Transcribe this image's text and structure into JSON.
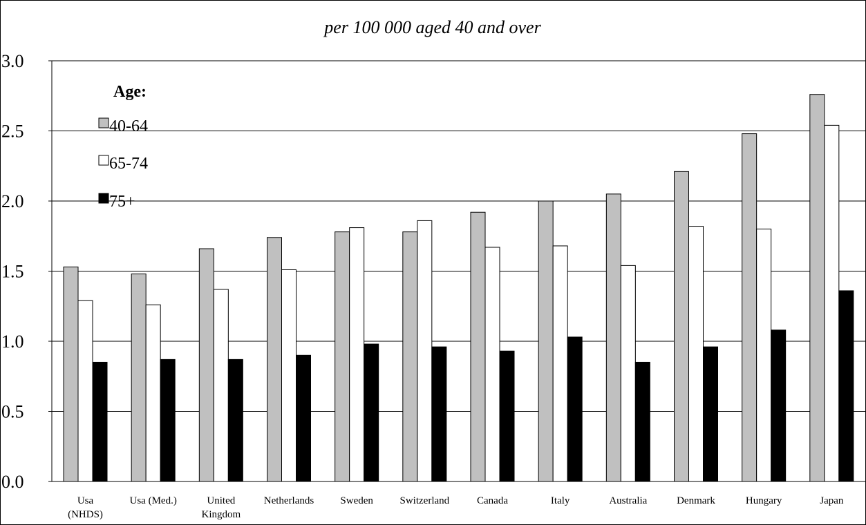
{
  "chart_data": {
    "type": "bar",
    "title": "per 100 000 aged 40 and over",
    "legend_title": "Age:",
    "legend_position": "top-left",
    "categories": [
      [
        "Usa",
        "(NHDS)"
      ],
      [
        "Usa (Med.)"
      ],
      [
        "United",
        "Kingdom"
      ],
      [
        "Netherlands"
      ],
      [
        "Sweden"
      ],
      [
        "Switzerland"
      ],
      [
        "Canada"
      ],
      [
        "Italy"
      ],
      [
        "Australia"
      ],
      [
        "Denmark"
      ],
      [
        "Hungary"
      ],
      [
        "Japan"
      ]
    ],
    "series": [
      {
        "name": "40-64",
        "color": "#c0c0c0",
        "values": [
          1.53,
          1.48,
          1.66,
          1.74,
          1.78,
          1.78,
          1.92,
          2.0,
          2.05,
          2.21,
          2.48,
          2.76
        ]
      },
      {
        "name": "65-74",
        "color": "#ffffff",
        "values": [
          1.29,
          1.26,
          1.37,
          1.51,
          1.81,
          1.86,
          1.67,
          1.68,
          1.54,
          1.82,
          1.8,
          2.54
        ]
      },
      {
        "name": "75+",
        "color": "#000000",
        "values": [
          0.85,
          0.87,
          0.87,
          0.9,
          0.98,
          0.96,
          0.93,
          1.03,
          0.85,
          0.96,
          1.08,
          1.36
        ]
      }
    ],
    "yticks": [
      "0.0",
      "0.5",
      "1.0",
      "1.5",
      "2.0",
      "2.5",
      "3.0"
    ],
    "ylim": [
      0,
      3.0
    ],
    "grid": true
  }
}
